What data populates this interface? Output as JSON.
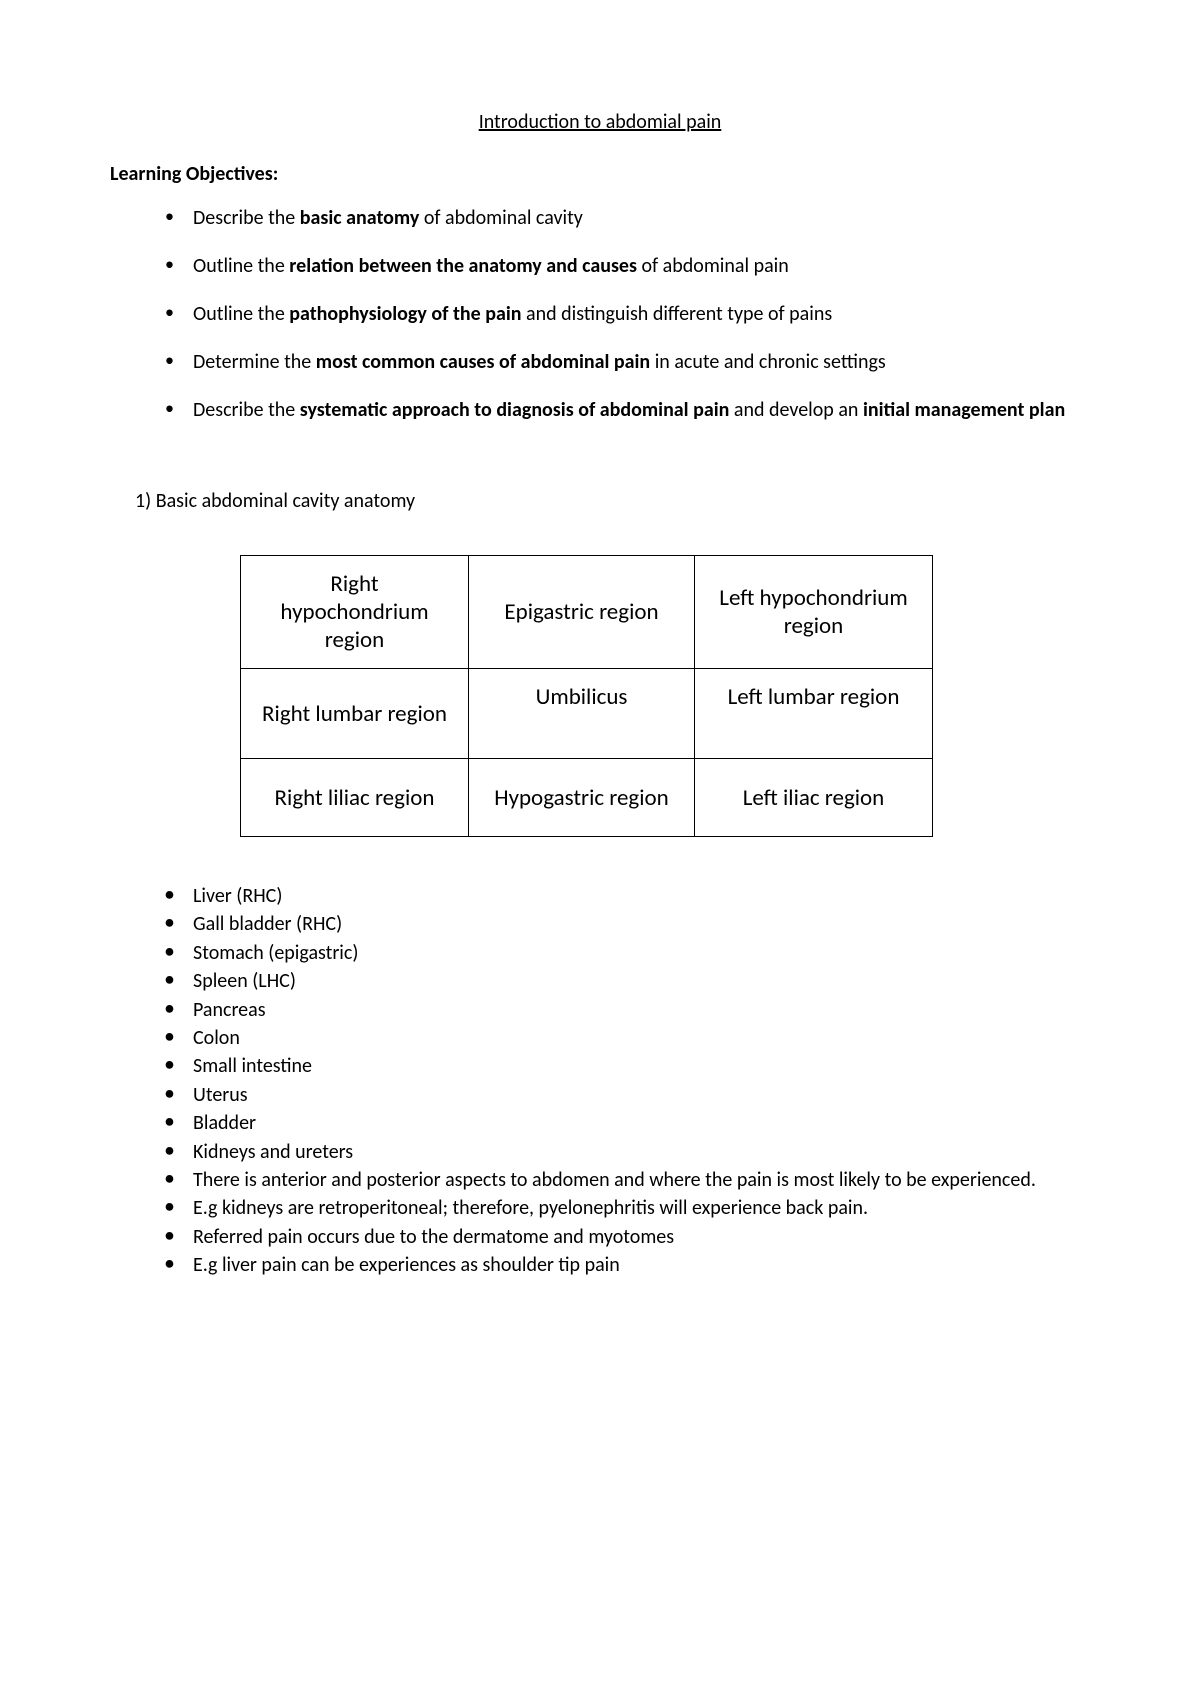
{
  "title": "Introduction to abdomial pain",
  "learningObjectives": {
    "heading": "Learning Objectives:",
    "items": [
      {
        "prefix": "Describe the ",
        "bold": "basic anatomy",
        "suffix": " of abdominal cavity"
      },
      {
        "prefix": "Outline the ",
        "bold": "relation between the anatomy and causes",
        "suffix": " of abdominal pain"
      },
      {
        "prefix": "Outline the ",
        "bold": "pathophysiology of the pain",
        "suffix": " and distinguish different type of pains"
      },
      {
        "prefix": "Determine the ",
        "bold": "most common causes of abdominal pain",
        "suffix": " in acute and chronic settings"
      },
      {
        "prefix": "Describe the ",
        "bold": "systematic approach to diagnosis of abdominal pain",
        "suffix": " and develop an ",
        "bold2": "initial management plan"
      }
    ]
  },
  "section1": {
    "heading": "1)   Basic abdominal cavity anatomy",
    "regionsTable": {
      "rows": [
        [
          "Right hypochondrium region",
          "Epigastric region",
          "Left hypochondrium region"
        ],
        [
          "Right lumbar region",
          "Umbilicus",
          "Left lumbar region"
        ],
        [
          "Right liliac region",
          "Hypogastric region",
          "Left iliac region"
        ]
      ]
    },
    "organsList": [
      "Liver (RHC)",
      "Gall bladder (RHC)",
      "Stomach (epigastric)",
      "Spleen (LHC)",
      "Pancreas",
      "Colon",
      "Small intestine",
      "Uterus",
      "Bladder",
      "Kidneys and ureters",
      "There is anterior and posterior aspects to abdomen and where the pain is most likely to be experienced.",
      "E.g kidneys are retroperitoneal; therefore, pyelonephritis will experience back pain.",
      "Referred pain occurs due to the dermatome and myotomes",
      "E.g liver pain can be experiences as shoulder tip pain"
    ]
  },
  "styling": {
    "background_color": "#ffffff",
    "text_color": "#000000",
    "border_color": "#000000",
    "title_fontsize": 20,
    "body_fontsize": 20,
    "table_fontsize": 23,
    "font_family": "Calibri"
  }
}
